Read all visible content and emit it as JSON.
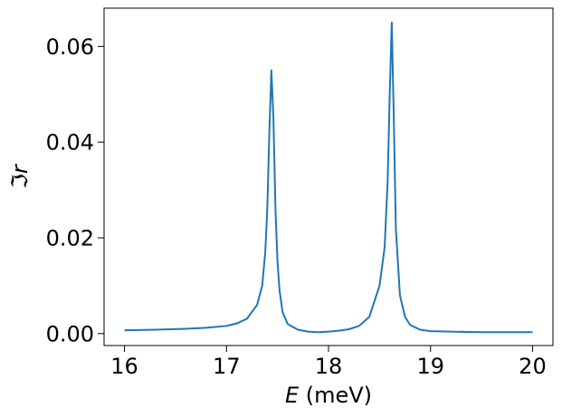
{
  "chart_data": {
    "type": "line",
    "title": "",
    "xlabel_var": "E",
    "xlabel_unit": " (meV)",
    "ylabel": "ℑr",
    "xlim": [
      15.8,
      20.2
    ],
    "ylim": [
      -0.0025,
      0.068
    ],
    "grid": false,
    "legend": "none",
    "xticks": [
      16,
      17,
      18,
      19,
      20
    ],
    "xtick_labels": [
      "16",
      "17",
      "18",
      "19",
      "20"
    ],
    "yticks": [
      0.0,
      0.02,
      0.04,
      0.06
    ],
    "ytick_labels": [
      "0.00",
      "0.02",
      "0.04",
      "0.06"
    ],
    "series": [
      {
        "color": "#1f77b4",
        "x": [
          16.0,
          16.3,
          16.6,
          16.8,
          17.0,
          17.1,
          17.2,
          17.3,
          17.35,
          17.38,
          17.4,
          17.42,
          17.44,
          17.46,
          17.48,
          17.5,
          17.52,
          17.55,
          17.6,
          17.7,
          17.8,
          17.9,
          18.0,
          18.1,
          18.2,
          18.3,
          18.4,
          18.5,
          18.55,
          18.58,
          18.6,
          18.62,
          18.64,
          18.66,
          18.7,
          18.75,
          18.8,
          18.9,
          19.0,
          19.2,
          19.5,
          19.8,
          20.0
        ],
        "y": [
          0.0007,
          0.0008,
          0.001,
          0.0012,
          0.0016,
          0.0021,
          0.0031,
          0.006,
          0.01,
          0.017,
          0.026,
          0.042,
          0.055,
          0.045,
          0.026,
          0.015,
          0.009,
          0.0045,
          0.002,
          0.0008,
          0.0004,
          0.0003,
          0.0004,
          0.0006,
          0.0009,
          0.0016,
          0.0035,
          0.01,
          0.018,
          0.032,
          0.05,
          0.065,
          0.045,
          0.022,
          0.008,
          0.0035,
          0.0018,
          0.0008,
          0.0005,
          0.0004,
          0.0003,
          0.0003,
          0.0003
        ]
      }
    ]
  }
}
